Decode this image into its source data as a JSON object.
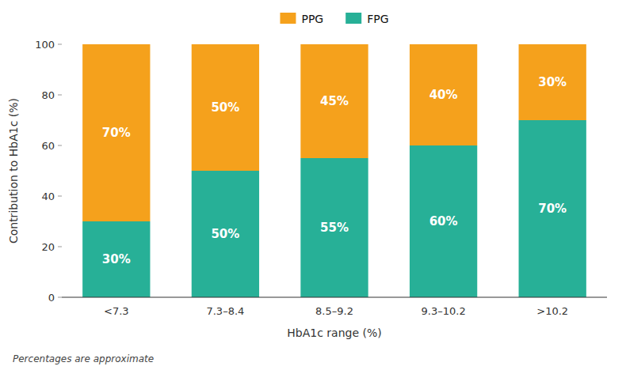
{
  "chart_data": {
    "type": "bar",
    "stacked": true,
    "categories": [
      "<7.3",
      "7.3–8.4",
      "8.5–9.2",
      "9.3–10.2",
      ">10.2"
    ],
    "series": [
      {
        "name": "FPG",
        "color": "#27b097",
        "values": [
          30,
          50,
          55,
          60,
          70
        ],
        "value_labels": [
          "30%",
          "50%",
          "55%",
          "60%",
          "70%"
        ]
      },
      {
        "name": "PPG",
        "color": "#f5a11c",
        "values": [
          70,
          50,
          45,
          40,
          30
        ],
        "value_labels": [
          "70%",
          "50%",
          "45%",
          "40%",
          "30%"
        ]
      }
    ],
    "x_label": "HbA1c range (%)",
    "y_label": "Contribution to HbA1c (%)",
    "footnote": "Percentages are approximate",
    "ylim": [
      0,
      100
    ],
    "yticks": [
      0,
      20,
      40,
      60,
      80,
      100
    ],
    "grid": false,
    "legend": "top",
    "data_labels": true
  }
}
